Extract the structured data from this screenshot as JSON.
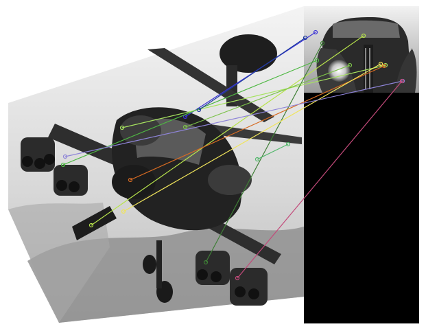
{
  "scene": {
    "left_image": {
      "subject": "helicopter-photo",
      "style": "grayscale"
    },
    "right_image": {
      "subject": "vintage-car-photo",
      "style": "grayscale"
    },
    "match_lines": [
      {
        "color": "#3b32d6"
      },
      {
        "color": "#b7e34c"
      },
      {
        "color": "#a6e35f"
      },
      {
        "color": "#4fb843"
      },
      {
        "color": "#3f7f36"
      },
      {
        "color": "#7cc24a"
      },
      {
        "color": "#d66b23"
      },
      {
        "color": "#f0e45b"
      },
      {
        "color": "#8e84d8"
      },
      {
        "color": "#1f3d9e"
      },
      {
        "color": "#c34a7a"
      },
      {
        "color": "#55b86d"
      }
    ]
  }
}
